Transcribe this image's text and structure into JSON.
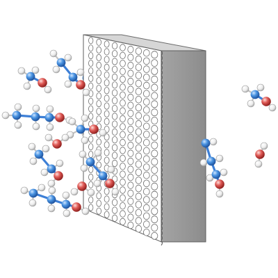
{
  "colors": {
    "background": "#ffffff",
    "membrane_face": "#ffffff",
    "membrane_side": "#8f8f8f",
    "membrane_edge": "#5e5e5e",
    "pore_stroke": "#6c6c6c",
    "carbon": "#4a94e2",
    "oxygen": "#e05a56",
    "hydrogen": "#eeeeee",
    "bond": "#3d7fd6",
    "bond_oxygen": "#d86a6a"
  },
  "membrane": {
    "pore_rows": 23,
    "pore_columns": 9
  },
  "molecules": [
    {
      "type": "ethanol"
    },
    {
      "type": "ethanol"
    },
    {
      "type": "propanol"
    },
    {
      "type": "ethanol"
    },
    {
      "type": "ethanol"
    },
    {
      "type": "propanol"
    },
    {
      "type": "ethanol"
    },
    {
      "type": "ethanol"
    },
    {
      "type": "ethanol"
    },
    {
      "type": "ethanol"
    },
    {
      "type": "ethanol"
    },
    {
      "type": "methanol"
    },
    {
      "type": "water"
    },
    {
      "type": "ethanol"
    }
  ]
}
